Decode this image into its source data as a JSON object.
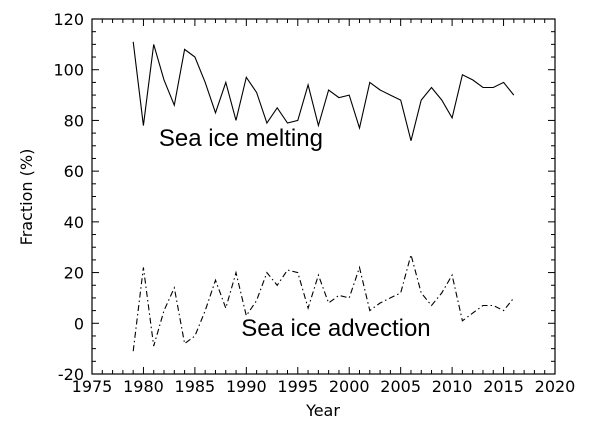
{
  "chart_data": {
    "type": "line",
    "title": "",
    "xlabel": "Year",
    "ylabel": "Fraction (%)",
    "xlim": [
      1975,
      2020
    ],
    "ylim": [
      -20,
      120
    ],
    "x_ticks": [
      1975,
      1980,
      1985,
      1990,
      1995,
      2000,
      2005,
      2010,
      2015,
      2020
    ],
    "y_ticks": [
      -20,
      0,
      20,
      40,
      60,
      80,
      100,
      120
    ],
    "grid": false,
    "legend": "none",
    "x": [
      1979,
      1980,
      1981,
      1982,
      1983,
      1984,
      1985,
      1986,
      1987,
      1988,
      1989,
      1990,
      1991,
      1992,
      1993,
      1994,
      1995,
      1996,
      1997,
      1998,
      1999,
      2000,
      2001,
      2002,
      2003,
      2004,
      2005,
      2006,
      2007,
      2008,
      2009,
      2010,
      2011,
      2012,
      2013,
      2014,
      2015,
      2016
    ],
    "series": [
      {
        "line_style": "solid",
        "values": [
          111,
          78,
          110,
          96,
          86,
          108,
          105,
          95,
          83,
          95,
          80,
          97,
          91,
          79,
          85,
          79,
          80,
          94,
          78,
          92,
          89,
          90,
          77,
          95,
          92,
          90,
          88,
          72,
          88,
          93,
          88,
          81,
          98,
          96,
          93,
          93,
          95,
          90
        ]
      },
      {
        "line_style": "dashdot",
        "values": [
          -11,
          22,
          -9,
          5,
          14,
          -8,
          -5,
          5,
          17,
          6,
          20,
          3,
          9,
          20,
          15,
          21,
          20,
          6,
          19,
          8,
          11,
          10,
          22,
          5,
          8,
          10,
          12,
          27,
          12,
          7,
          12,
          19,
          1,
          4,
          7,
          7,
          5,
          10
        ]
      }
    ],
    "annotations": [
      {
        "text": "Sea ice melting",
        "x": 1981.5,
        "y": 70
      },
      {
        "text": "Sea ice advection",
        "x": 1989.5,
        "y": -5
      }
    ],
    "colors": {
      "line": "#000000",
      "axis": "#000000",
      "background": "#ffffff"
    }
  }
}
